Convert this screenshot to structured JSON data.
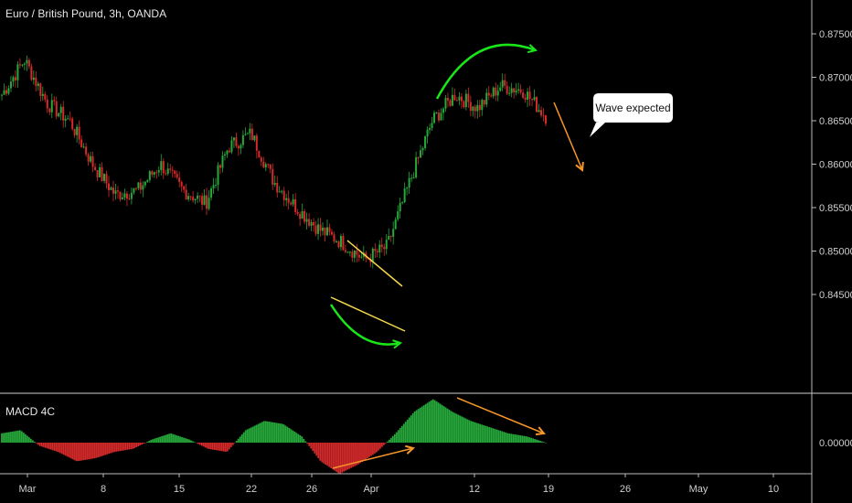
{
  "header": {
    "symbol_title": "Euro / British Pound, 3h, OANDA"
  },
  "macd_panel": {
    "label": "MACD 4C"
  },
  "annotation": {
    "callout_text": "Wave expected"
  },
  "colors": {
    "background": "#000000",
    "candle_up": "#26a83a",
    "candle_down": "#d62a2a",
    "macd_pos": "#26a83a",
    "macd_neg": "#d62a2a",
    "trend_line": "#f5d94a",
    "arrow_green": "#19e619",
    "arrow_orange": "#f5962a",
    "axis_text": "#cfcfcf"
  },
  "chart_data": [
    {
      "type": "candlestick",
      "title": "Euro / British Pound, 3h, OANDA",
      "ylim": [
        0.842,
        0.878
      ],
      "y_ticks": [
        "0.87500",
        "0.87000",
        "0.86500",
        "0.86000",
        "0.85500",
        "0.85000",
        "0.84500"
      ],
      "x_ticks": [
        "Mar",
        "8",
        "15",
        "22",
        "26",
        "Apr",
        "12",
        "19",
        "26",
        "May",
        "10"
      ],
      "close_path": [
        [
          "Mar",
          0.868
        ],
        [
          "Mar",
          0.872
        ],
        [
          "Mar",
          0.867
        ],
        [
          "8",
          0.865
        ],
        [
          "8",
          0.86
        ],
        [
          "8",
          0.8565
        ],
        [
          "15",
          0.857
        ],
        [
          "15",
          0.86
        ],
        [
          "15",
          0.857
        ],
        [
          "22",
          0.8555
        ],
        [
          "22",
          0.862
        ],
        [
          "22",
          0.8635
        ],
        [
          "26",
          0.858
        ],
        [
          "26",
          0.855
        ],
        [
          "26",
          0.8525
        ],
        [
          "Apr",
          0.851
        ],
        [
          "Apr",
          0.849
        ],
        [
          "Apr",
          0.8505
        ],
        [
          "Apr",
          0.858
        ],
        [
          "12",
          0.865
        ],
        [
          "12",
          0.868
        ],
        [
          "12",
          0.8665
        ],
        [
          "19",
          0.869
        ],
        [
          "19",
          0.8685
        ],
        [
          "19",
          0.8655
        ]
      ]
    },
    {
      "type": "bar",
      "title": "MACD 4C",
      "y_ticks": [
        "0.00000"
      ],
      "x_ticks": [
        "Mar",
        "8",
        "15",
        "22",
        "26",
        "Apr",
        "12",
        "19",
        "26",
        "May",
        "10"
      ],
      "values": [
        0.3,
        0.4,
        -0.1,
        -0.3,
        -0.6,
        -0.5,
        -0.3,
        -0.2,
        0.1,
        0.3,
        0.1,
        -0.2,
        -0.3,
        0.4,
        0.7,
        0.6,
        0.2,
        -0.6,
        -1.0,
        -0.7,
        -0.3,
        0.3,
        1.0,
        1.4,
        1.0,
        0.7,
        0.5,
        0.3,
        0.2,
        0.0
      ]
    }
  ]
}
